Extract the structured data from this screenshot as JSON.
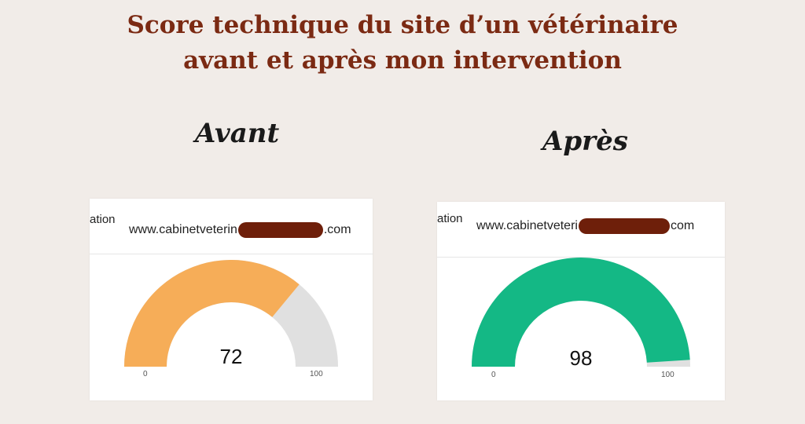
{
  "title": {
    "line1": "Score technique du site d’un vétérinaire",
    "line2": "avant et après mon intervention"
  },
  "panels": [
    {
      "label": "Avant",
      "tab_partial": "ation",
      "url_prefix": "www.cabinetveterin",
      "url_suffix": ".com",
      "score": 72,
      "score_text": "72",
      "min_label": "0",
      "max_label": "100",
      "fill_color": "#f6ad58",
      "track_color": "#e0e0e0"
    },
    {
      "label": "Après",
      "tab_partial": "ation",
      "url_prefix": "www.cabinetveteri",
      "url_suffix": "com",
      "score": 98,
      "score_text": "98",
      "min_label": "0",
      "max_label": "100",
      "fill_color": "#14b885",
      "track_color": "#e0e0e0"
    }
  ]
}
